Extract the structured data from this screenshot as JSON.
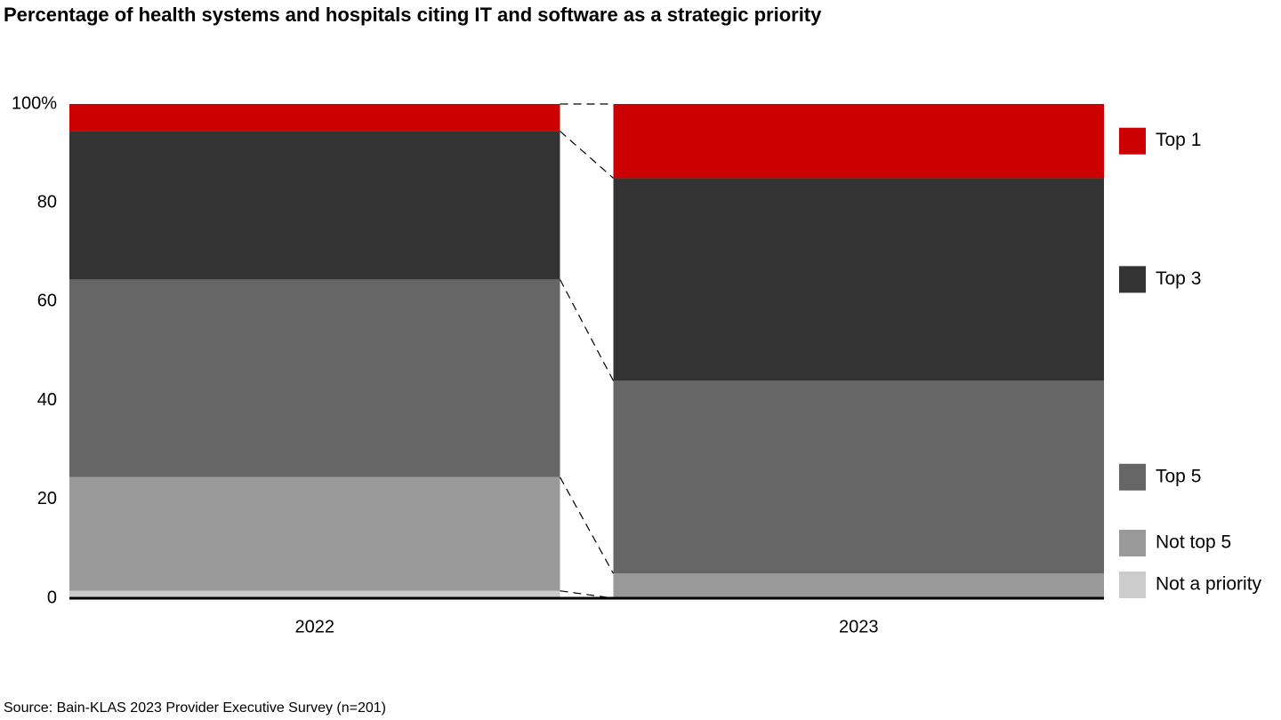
{
  "chart_data": {
    "type": "stacked-bar",
    "title": "Percentage of health systems and hospitals citing IT and software as a strategic priority",
    "source": "Source: Bain-KLAS 2023 Provider Executive Survey (n=201)",
    "categories": [
      "2022",
      "2023"
    ],
    "series": [
      {
        "name": "Top 1",
        "color": "#cc0000",
        "values": [
          5.5,
          15
        ]
      },
      {
        "name": "Top 3",
        "color": "#333333",
        "values": [
          30,
          41
        ]
      },
      {
        "name": "Top 5",
        "color": "#666666",
        "values": [
          40,
          39
        ]
      },
      {
        "name": "Not top 5",
        "color": "#999999",
        "values": [
          23,
          5
        ]
      },
      {
        "name": "Not a priority",
        "color": "#cccccc",
        "values": [
          1.5,
          0
        ]
      }
    ],
    "ylim": [
      0,
      100
    ],
    "yticks": [
      0,
      20,
      40,
      60,
      80,
      {
        "value": 100,
        "label": "100%"
      }
    ],
    "legend": "right"
  }
}
